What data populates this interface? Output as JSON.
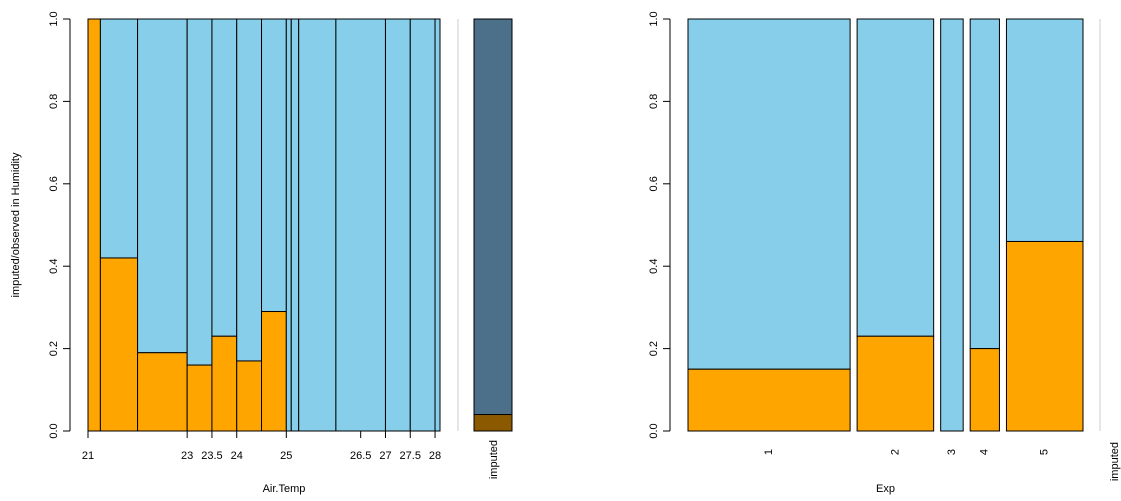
{
  "colors": {
    "observed": "#87CEEB",
    "imputed": "#FFA500",
    "observed_dark": "#4C6F8A",
    "imputed_dark": "#8B5A00",
    "line": "#000000",
    "separator": "#CCCCCC"
  },
  "chart_data": [
    {
      "type": "spineplot",
      "xlabel": "Air.Temp",
      "ylabel": "imputed/observed in Humidity",
      "ylim": [
        0,
        1
      ],
      "yticks": [
        "0.0",
        "0.2",
        "0.4",
        "0.6",
        "0.8",
        "1.0"
      ],
      "x_breaks": [
        21,
        21.25,
        22,
        23,
        23.5,
        24,
        24.5,
        25,
        25.1,
        25.25,
        26,
        27,
        27.5,
        28,
        28.1
      ],
      "xtick_labels": [
        {
          "value": 21,
          "label": "21"
        },
        {
          "value": 23,
          "label": "23"
        },
        {
          "value": 23.5,
          "label": "23.5"
        },
        {
          "value": 24,
          "label": "24"
        },
        {
          "value": 25,
          "label": "25"
        },
        {
          "value": 26.5,
          "label": "26.5"
        },
        {
          "value": 27,
          "label": "27"
        },
        {
          "value": 27.5,
          "label": "27.5"
        },
        {
          "value": 28,
          "label": "28"
        }
      ],
      "imputed_fraction": [
        1.0,
        0.42,
        0.19,
        0.16,
        0.23,
        0.17,
        0.29,
        0.0,
        0.0,
        0.0,
        0.0,
        0.0,
        0.0,
        0.0
      ],
      "missing_bar": {
        "label": "imputed",
        "imputed_fraction": 0.04
      }
    },
    {
      "type": "spineplot",
      "xlabel": "Exp",
      "ylabel": "",
      "ylim": [
        0,
        1
      ],
      "yticks": [
        "0.0",
        "0.2",
        "0.4",
        "0.6",
        "0.8",
        "1.0"
      ],
      "categories": [
        "1",
        "2",
        "3",
        "4",
        "5"
      ],
      "widths": [
        0.36,
        0.17,
        0.05,
        0.065,
        0.17
      ],
      "imputed_fraction": [
        0.15,
        0.23,
        0.0,
        0.2,
        0.46
      ],
      "missing_bar": {
        "label": "imputed",
        "imputed_fraction": null
      }
    }
  ]
}
